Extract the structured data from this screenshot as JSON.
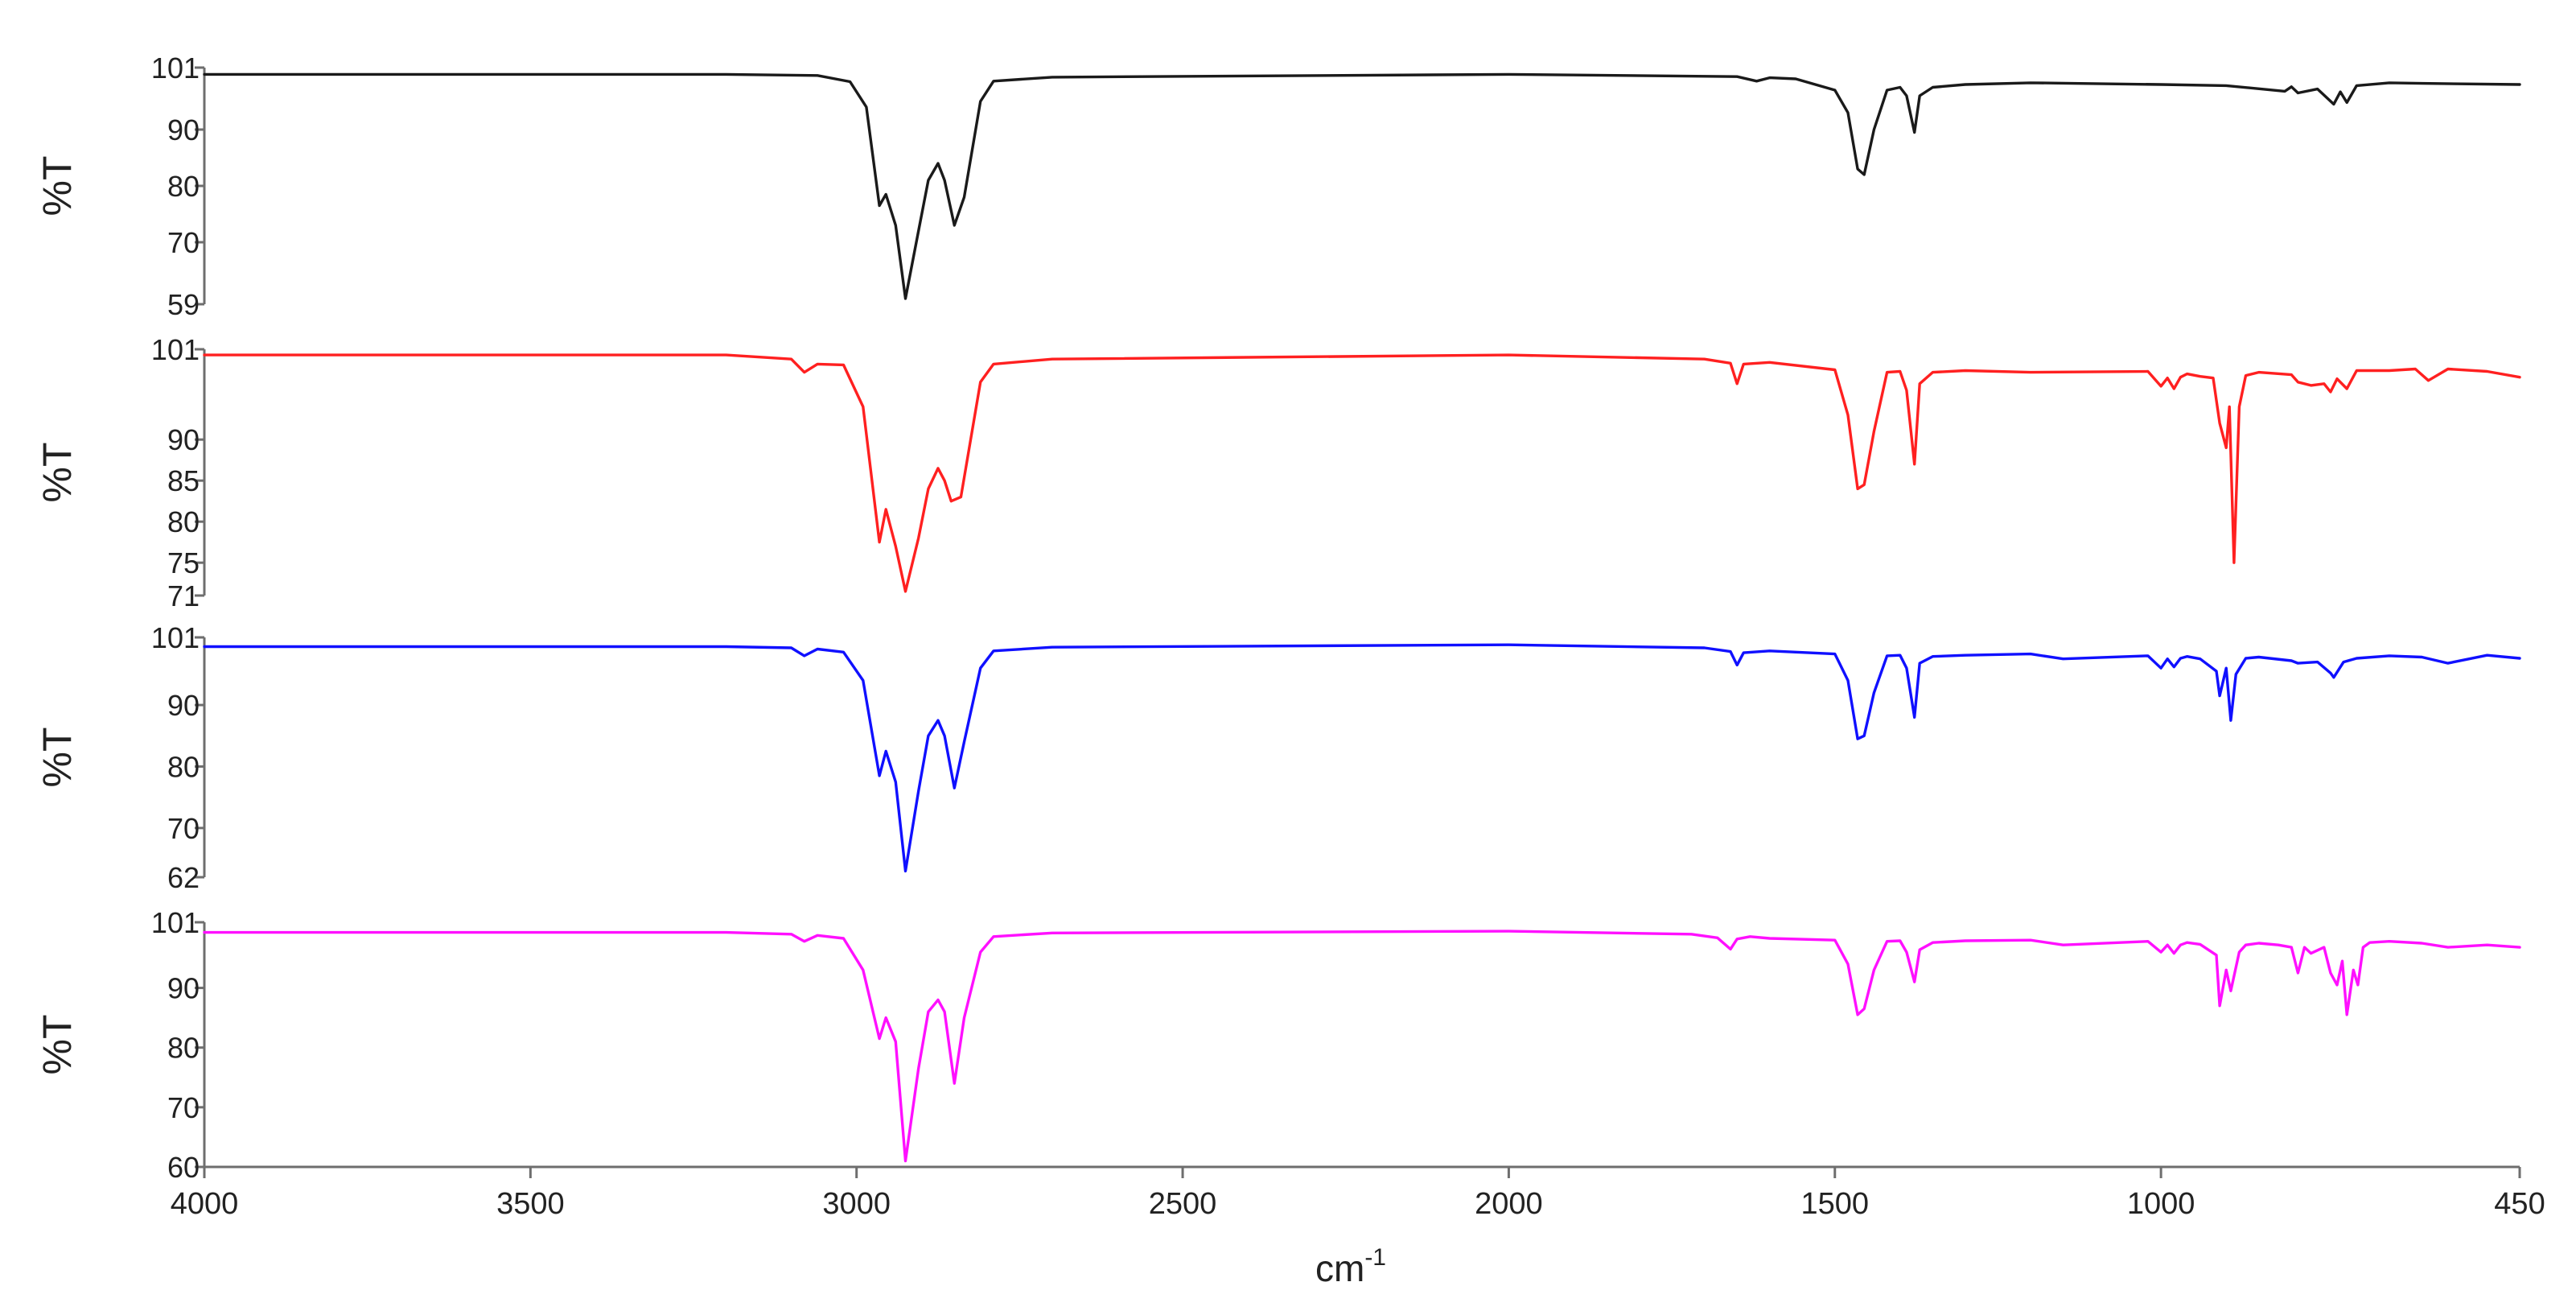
{
  "chart_data": {
    "type": "line",
    "x_range": [
      4000,
      450
    ],
    "x_reversed": true,
    "x_ticks": [
      4000,
      3500,
      3000,
      2500,
      2000,
      1500,
      1000,
      450
    ],
    "x_tick_labels": [
      "4000",
      "3500",
      "3000",
      "2500",
      "2000",
      "1500",
      "1000",
      "450"
    ],
    "xlabel": "cm",
    "xlabel_superscript": "-1",
    "grid": false,
    "legend": "none",
    "panels": [
      {
        "ylabel": "%T",
        "ylim": [
          59,
          101
        ],
        "y_ticks": [
          101,
          90,
          80,
          70,
          59
        ],
        "y_tick_labels": [
          "101",
          "90",
          "80",
          "70",
          "59"
        ],
        "series": {
          "color": "#1a1a1a",
          "x": [
            4000,
            3200,
            3060,
            3010,
            2985,
            2965,
            2955,
            2940,
            2925,
            2905,
            2890,
            2875,
            2865,
            2850,
            2835,
            2810,
            2790,
            2700,
            2000,
            1650,
            1620,
            1600,
            1560,
            1500,
            1480,
            1465,
            1455,
            1440,
            1420,
            1400,
            1390,
            1378,
            1370,
            1350,
            1300,
            1200,
            1000,
            900,
            810,
            800,
            790,
            760,
            735,
            725,
            715,
            700,
            650,
            600,
            450
          ],
          "y": [
            99.8,
            99.8,
            99.6,
            98.5,
            94,
            76.5,
            78.5,
            73,
            60,
            72,
            81,
            84,
            81,
            73,
            78,
            95,
            98.6,
            99.3,
            99.8,
            99.4,
            98.6,
            99.2,
            99.0,
            97,
            93,
            83,
            82,
            90,
            97,
            97.5,
            96,
            89.5,
            96,
            97.5,
            98.0,
            98.3,
            98.0,
            97.8,
            96.8,
            97.6,
            96.5,
            97.2,
            94.5,
            96.7,
            94.8,
            97.8,
            98.3,
            98.2,
            98.0
          ]
        }
      },
      {
        "ylabel": "%T",
        "ylim": [
          71,
          101
        ],
        "y_ticks": [
          101,
          90,
          85,
          80,
          75,
          71
        ],
        "y_tick_labels": [
          "101",
          "90",
          "85",
          "80",
          "75",
          "71"
        ],
        "series": {
          "color": "#ff2020",
          "x": [
            4000,
            3200,
            3100,
            3080,
            3060,
            3020,
            2990,
            2965,
            2955,
            2940,
            2925,
            2905,
            2890,
            2875,
            2865,
            2855,
            2840,
            2810,
            2790,
            2700,
            2000,
            1700,
            1660,
            1650,
            1640,
            1600,
            1500,
            1480,
            1465,
            1455,
            1440,
            1420,
            1400,
            1390,
            1378,
            1370,
            1350,
            1300,
            1200,
            1020,
            1000,
            990,
            980,
            970,
            960,
            940,
            920,
            910,
            900,
            895,
            888,
            880,
            870,
            850,
            800,
            790,
            770,
            750,
            740,
            730,
            715,
            700,
            650,
            610,
            590,
            560,
            500,
            450
          ],
          "y": [
            100.3,
            100.3,
            99.8,
            98.2,
            99.2,
            99.1,
            94,
            77.5,
            81.5,
            77,
            71.5,
            78,
            84,
            86.5,
            85,
            82.5,
            83,
            97,
            99.2,
            99.8,
            100.3,
            99.8,
            99.3,
            96.8,
            99.2,
            99.4,
            98.5,
            93,
            84,
            84.5,
            91,
            98.2,
            98.3,
            96,
            87,
            96.8,
            98.2,
            98.4,
            98.2,
            98.3,
            96.5,
            97.5,
            96.2,
            97.6,
            98.0,
            97.7,
            97.5,
            92,
            89,
            94,
            75,
            94,
            97.8,
            98.2,
            97.9,
            97.0,
            96.6,
            96.8,
            95.8,
            97.4,
            96.2,
            98.4,
            98.4,
            98.6,
            97.2,
            98.6,
            98.3,
            97.6
          ]
        }
      },
      {
        "ylabel": "%T",
        "ylim": [
          62,
          101
        ],
        "y_ticks": [
          101,
          90,
          80,
          70,
          62
        ],
        "y_tick_labels": [
          "101",
          "90",
          "80",
          "70",
          "62"
        ],
        "series": {
          "color": "#1010ff",
          "x": [
            4000,
            3200,
            3100,
            3080,
            3060,
            3020,
            2990,
            2965,
            2955,
            2940,
            2925,
            2905,
            2890,
            2875,
            2865,
            2850,
            2835,
            2810,
            2790,
            2700,
            2000,
            1700,
            1660,
            1650,
            1640,
            1600,
            1500,
            1480,
            1465,
            1455,
            1440,
            1420,
            1400,
            1390,
            1378,
            1370,
            1350,
            1300,
            1200,
            1150,
            1020,
            1000,
            990,
            980,
            970,
            960,
            940,
            915,
            910,
            900,
            893,
            885,
            870,
            850,
            800,
            790,
            760,
            740,
            735,
            720,
            700,
            650,
            600,
            560,
            500,
            450
          ],
          "y": [
            99.5,
            99.5,
            99.3,
            98.0,
            99.1,
            98.6,
            94,
            78.5,
            82.5,
            77.5,
            63,
            76,
            85,
            87.5,
            85,
            76.5,
            84,
            96,
            98.8,
            99.4,
            99.8,
            99.3,
            98.7,
            96.5,
            98.5,
            98.8,
            98.3,
            94,
            84.5,
            85,
            92,
            98.0,
            98.1,
            96,
            88,
            96.8,
            97.9,
            98.1,
            98.3,
            97.5,
            98.0,
            96.0,
            97.5,
            96.2,
            97.6,
            97.9,
            97.5,
            95.5,
            91.5,
            96,
            87.5,
            95,
            97.6,
            97.8,
            97.2,
            96.8,
            97.0,
            95.2,
            94.5,
            97.0,
            97.6,
            98.0,
            97.8,
            96.8,
            98.1,
            97.6
          ]
        }
      },
      {
        "ylabel": "%T",
        "ylim": [
          60,
          101
        ],
        "y_ticks": [
          101,
          90,
          80,
          70,
          60
        ],
        "y_tick_labels": [
          "101",
          "90",
          "80",
          "70",
          "60"
        ],
        "series": {
          "color": "#ff10ff",
          "x": [
            4000,
            3200,
            3100,
            3080,
            3060,
            3020,
            2990,
            2965,
            2955,
            2940,
            2925,
            2905,
            2890,
            2875,
            2865,
            2850,
            2835,
            2810,
            2790,
            2700,
            2000,
            1720,
            1680,
            1660,
            1650,
            1630,
            1600,
            1500,
            1480,
            1465,
            1455,
            1440,
            1420,
            1400,
            1390,
            1378,
            1370,
            1350,
            1300,
            1200,
            1150,
            1020,
            1000,
            990,
            980,
            970,
            960,
            940,
            915,
            910,
            900,
            893,
            880,
            870,
            850,
            820,
            800,
            790,
            780,
            770,
            750,
            740,
            730,
            722,
            715,
            705,
            698,
            690,
            680,
            650,
            600,
            560,
            500,
            450
          ],
          "y": [
            99.3,
            99.3,
            99.0,
            97.8,
            98.8,
            98.3,
            93,
            81.5,
            85,
            81,
            61,
            76.5,
            86,
            88,
            86,
            74,
            85,
            96,
            98.6,
            99.2,
            99.5,
            99.0,
            98.4,
            96.5,
            98.2,
            98.6,
            98.3,
            98.0,
            94,
            85.5,
            86.5,
            93,
            97.8,
            97.9,
            96,
            91,
            96.4,
            97.6,
            97.9,
            98.0,
            97.2,
            97.8,
            96.0,
            97.2,
            95.8,
            97.2,
            97.6,
            97.3,
            95.5,
            87,
            93,
            89.5,
            96,
            97.2,
            97.5,
            97.2,
            96.8,
            92.5,
            96.8,
            95.8,
            96.8,
            92.5,
            90.5,
            94.5,
            85.5,
            93,
            90.5,
            96.8,
            97.6,
            97.8,
            97.5,
            96.8,
            97.2,
            96.8
          ]
        }
      }
    ]
  }
}
